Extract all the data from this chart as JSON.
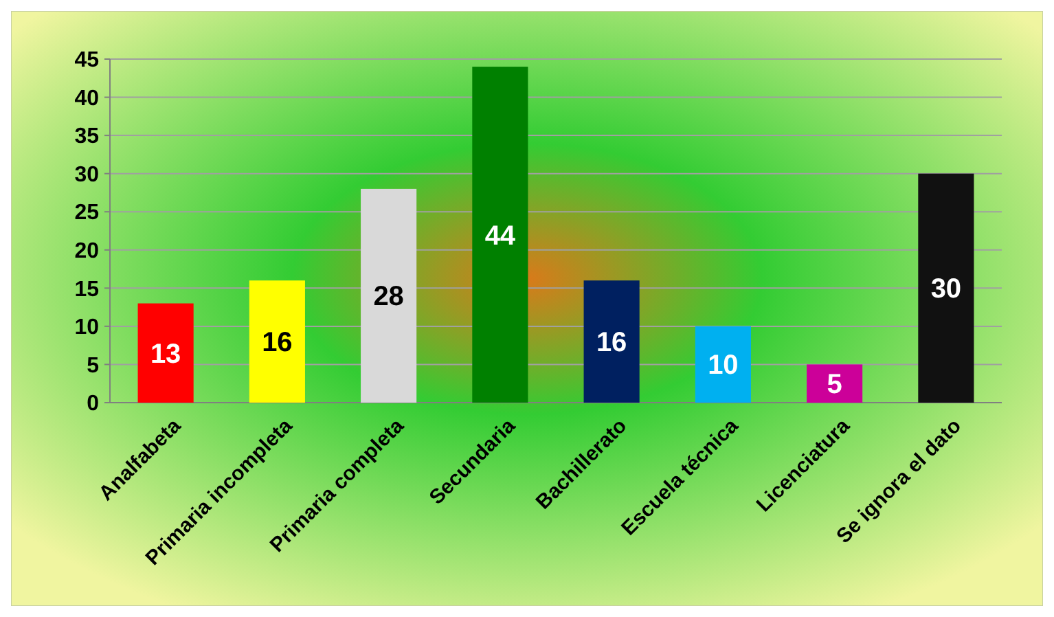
{
  "chart_data": {
    "type": "bar",
    "categories": [
      "Analfabeta",
      "Primaria incompleta",
      "Primaria completa",
      "Secundaria",
      "Bachillerato",
      "Escuela técnica",
      "Licenciatura",
      "Se ignora el dato"
    ],
    "values": [
      13,
      16,
      28,
      44,
      16,
      10,
      5,
      30
    ],
    "colors": [
      "#ff0000",
      "#ffff00",
      "#d9d9d9",
      "#008000",
      "#002060",
      "#00b0f0",
      "#cc0099",
      "#111111"
    ],
    "ylim": [
      0,
      45
    ],
    "yticks": [
      0,
      5,
      10,
      15,
      20,
      25,
      30,
      35,
      40,
      45
    ],
    "grid": "y",
    "data_labels": true
  }
}
